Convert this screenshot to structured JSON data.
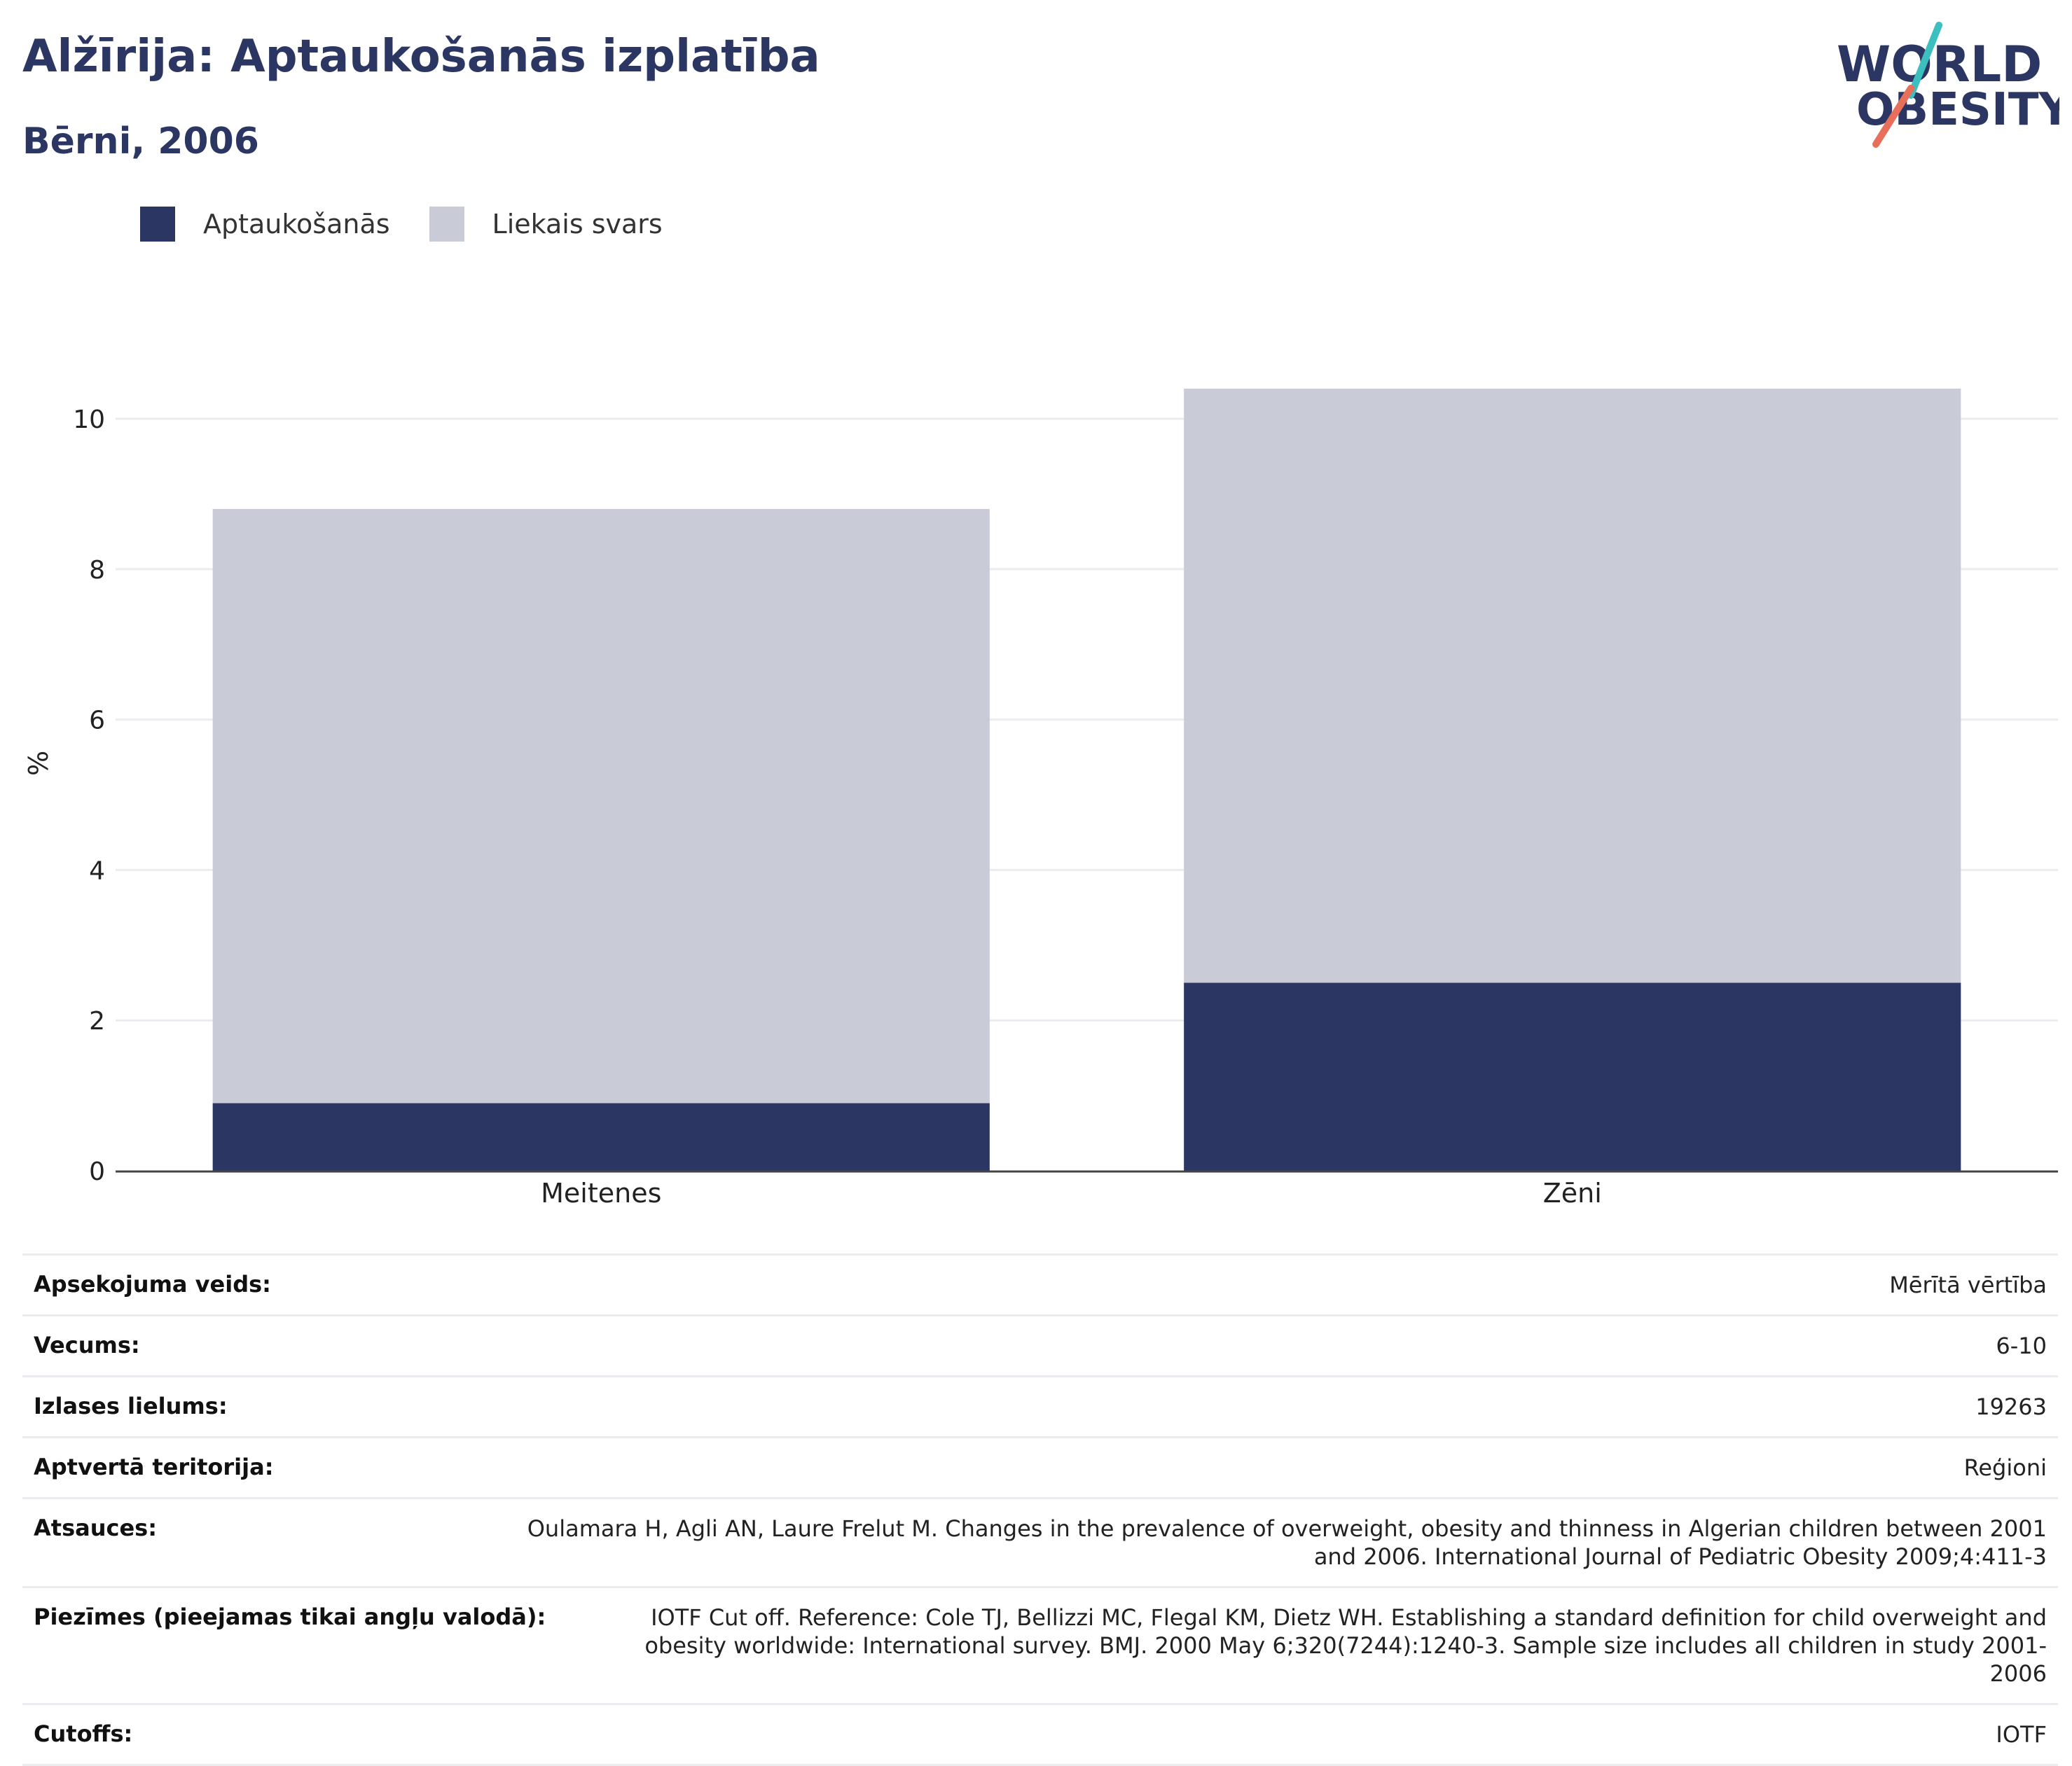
{
  "header": {
    "title": "Alžīrija: Aptaukošanās izplatība",
    "subtitle": "Bērni, 2006",
    "logo_line1": "WORLD",
    "logo_line2": "OBESITY"
  },
  "legend": {
    "items": [
      {
        "label": "Aptaukošanās",
        "color": "#2b3663"
      },
      {
        "label": "Liekais svars",
        "color": "#c9cbd7"
      }
    ]
  },
  "chart_data": {
    "type": "bar",
    "stacked": true,
    "categories": [
      "Meitenes",
      "Zēni"
    ],
    "series": [
      {
        "name": "Aptaukošanās",
        "values": [
          0.9,
          2.5
        ],
        "color": "#2b3663"
      },
      {
        "name": "Liekais svars",
        "values": [
          7.9,
          7.9
        ],
        "color": "#c9cbd7"
      }
    ],
    "ylabel": "%",
    "ylim": [
      0,
      11
    ],
    "yticks": [
      0,
      2,
      4,
      6,
      8,
      10
    ],
    "grid": true,
    "legend_position": "top-left"
  },
  "meta": {
    "rows": [
      {
        "label": "Apsekojuma veids:",
        "value": "Mērītā vērtība"
      },
      {
        "label": "Vecums:",
        "value": "6-10"
      },
      {
        "label": "Izlases lielums:",
        "value": "19263"
      },
      {
        "label": "Aptvertā teritorija:",
        "value": "Reģioni"
      },
      {
        "label": "Atsauces:",
        "value": "Oulamara H, Agli AN, Laure Frelut M. Changes in the prevalence of overweight, obesity and thinness in Algerian children between 2001 and 2006. International Journal of Pediatric Obesity 2009;4:411-3"
      },
      {
        "label": "Piezīmes (pieejamas tikai angļu valodā):",
        "value": "IOTF Cut off. Reference: Cole TJ, Bellizzi MC, Flegal KM, Dietz WH. Establishing a standard definition for child overweight and obesity worldwide: International survey. BMJ. 2000 May 6;320(7244):1240-3. Sample size includes all children in study 2001-2006"
      },
      {
        "label": "Cutoffs:",
        "value": "IOTF"
      }
    ]
  }
}
